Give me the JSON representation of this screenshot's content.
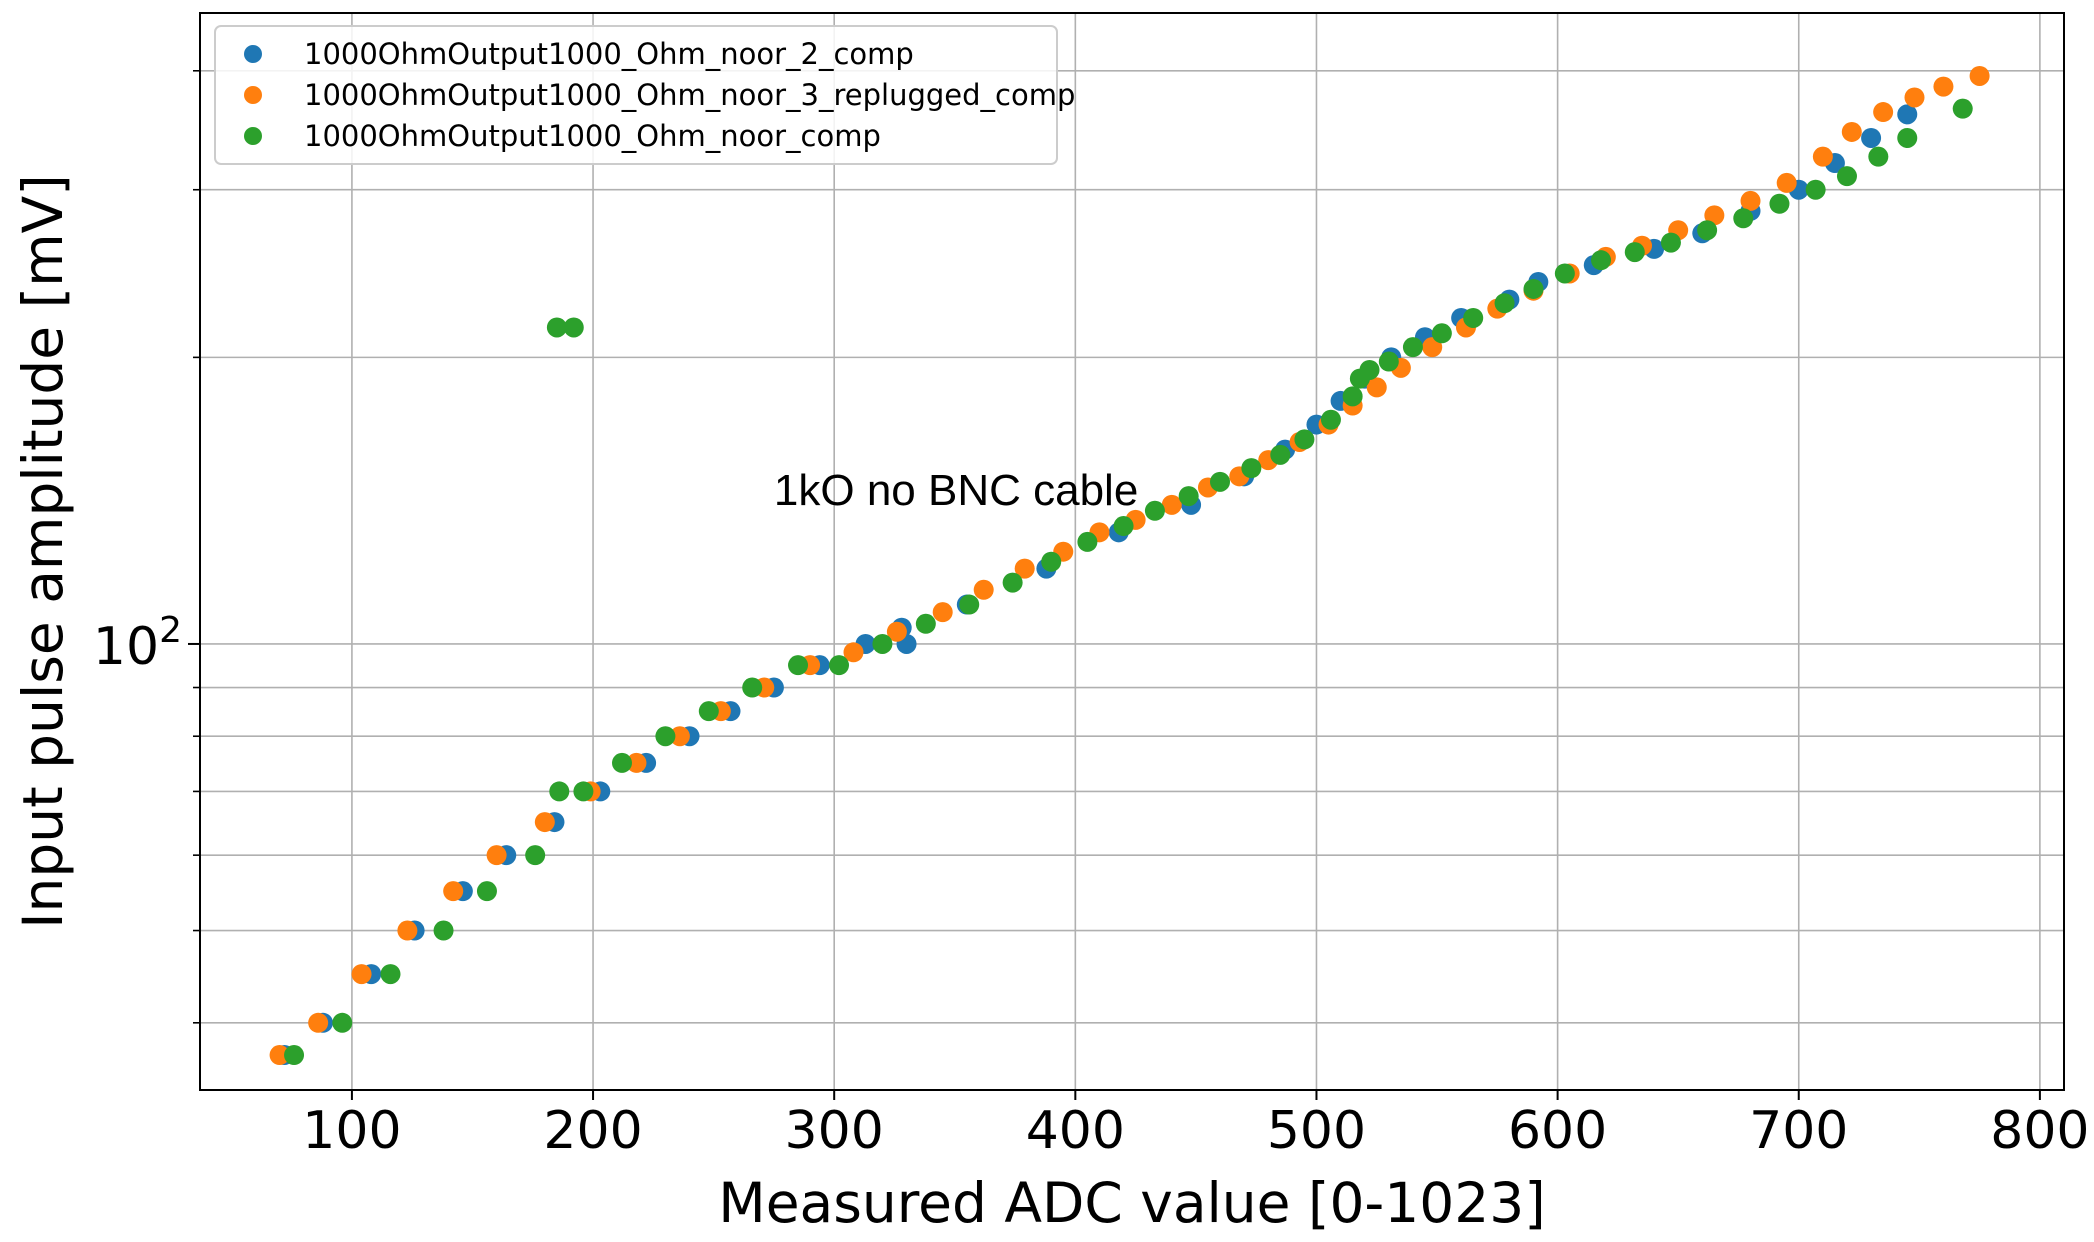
{
  "chart_data": {
    "type": "scatter",
    "title": "",
    "xlabel": "Measured ADC value [0-1023]",
    "ylabel": "Input pulse amplitude [mV]",
    "xlim": [
      37,
      810
    ],
    "ylim": [
      34,
      460
    ],
    "yscale": "log",
    "grid": true,
    "legend_position": "top-left",
    "x_ticks": [
      100,
      200,
      300,
      400,
      500,
      600,
      700,
      800
    ],
    "x_tick_labels": [
      "100",
      "200",
      "300",
      "400",
      "500",
      "600",
      "700",
      "800"
    ],
    "y_major_tick": {
      "base": "10",
      "exponent": "2",
      "value": 100
    },
    "y_minor_ticks": [
      40,
      50,
      60,
      70,
      80,
      90,
      200,
      300,
      400
    ],
    "annotation": {
      "text": "1kO no BNC cable",
      "x": 275,
      "y": 140
    },
    "series": [
      {
        "name": "1000OhmOutput1000_Ohm_noor_2_comp",
        "color": "#1f77b4",
        "points": [
          [
            72,
            37
          ],
          [
            88,
            40
          ],
          [
            108,
            45
          ],
          [
            126,
            50
          ],
          [
            146,
            55
          ],
          [
            164,
            60
          ],
          [
            184,
            65
          ],
          [
            203,
            70
          ],
          [
            222,
            75
          ],
          [
            240,
            80
          ],
          [
            257,
            85
          ],
          [
            275,
            90
          ],
          [
            294,
            95
          ],
          [
            313,
            100
          ],
          [
            330,
            100
          ],
          [
            328,
            104
          ],
          [
            355,
            110
          ],
          [
            388,
            120
          ],
          [
            418,
            131
          ],
          [
            448,
            140
          ],
          [
            470,
            150
          ],
          [
            487,
            160
          ],
          [
            500,
            170
          ],
          [
            510,
            180
          ],
          [
            520,
            190
          ],
          [
            531,
            200
          ],
          [
            545,
            210
          ],
          [
            560,
            220
          ],
          [
            580,
            230
          ],
          [
            592,
            240
          ],
          [
            615,
            250
          ],
          [
            640,
            260
          ],
          [
            660,
            270
          ],
          [
            680,
            285
          ],
          [
            700,
            300
          ],
          [
            715,
            320
          ],
          [
            730,
            340
          ],
          [
            745,
            360
          ]
        ]
      },
      {
        "name": "1000OhmOutput1000_Ohm_noor_3_replugged_comp",
        "color": "#ff7f0e",
        "points": [
          [
            70,
            37
          ],
          [
            86,
            40
          ],
          [
            104,
            45
          ],
          [
            123,
            50
          ],
          [
            142,
            55
          ],
          [
            160,
            60
          ],
          [
            180,
            65
          ],
          [
            199,
            70
          ],
          [
            218,
            75
          ],
          [
            236,
            80
          ],
          [
            253,
            85
          ],
          [
            271,
            90
          ],
          [
            290,
            95
          ],
          [
            308,
            98
          ],
          [
            326,
            103
          ],
          [
            345,
            108
          ],
          [
            362,
            114
          ],
          [
            379,
            120
          ],
          [
            395,
            125
          ],
          [
            410,
            131
          ],
          [
            425,
            135
          ],
          [
            440,
            140
          ],
          [
            455,
            146
          ],
          [
            468,
            150
          ],
          [
            480,
            156
          ],
          [
            493,
            163
          ],
          [
            505,
            170
          ],
          [
            515,
            178
          ],
          [
            525,
            186
          ],
          [
            535,
            195
          ],
          [
            548,
            205
          ],
          [
            562,
            215
          ],
          [
            575,
            225
          ],
          [
            590,
            235
          ],
          [
            605,
            245
          ],
          [
            620,
            255
          ],
          [
            635,
            262
          ],
          [
            650,
            272
          ],
          [
            665,
            282
          ],
          [
            680,
            292
          ],
          [
            695,
            305
          ],
          [
            710,
            325
          ],
          [
            722,
            345
          ],
          [
            735,
            362
          ],
          [
            748,
            375
          ],
          [
            760,
            385
          ],
          [
            775,
            395
          ]
        ]
      },
      {
        "name": "1000OhmOutput1000_Ohm_noor_comp",
        "color": "#2ca02c",
        "points": [
          [
            76,
            37
          ],
          [
            96,
            40
          ],
          [
            116,
            45
          ],
          [
            138,
            50
          ],
          [
            156,
            55
          ],
          [
            176,
            60
          ],
          [
            186,
            70
          ],
          [
            196,
            70
          ],
          [
            212,
            75
          ],
          [
            230,
            80
          ],
          [
            248,
            85
          ],
          [
            266,
            90
          ],
          [
            285,
            95
          ],
          [
            302,
            95
          ],
          [
            320,
            100
          ],
          [
            338,
            105
          ],
          [
            356,
            110
          ],
          [
            374,
            116
          ],
          [
            390,
            122
          ],
          [
            405,
            128
          ],
          [
            420,
            133
          ],
          [
            433,
            138
          ],
          [
            447,
            143
          ],
          [
            460,
            148
          ],
          [
            473,
            153
          ],
          [
            485,
            158
          ],
          [
            495,
            164
          ],
          [
            506,
            172
          ],
          [
            515,
            182
          ],
          [
            518,
            190
          ],
          [
            522,
            194
          ],
          [
            530,
            198
          ],
          [
            540,
            205
          ],
          [
            552,
            212
          ],
          [
            565,
            220
          ],
          [
            578,
            228
          ],
          [
            590,
            236
          ],
          [
            603,
            245
          ],
          [
            618,
            253
          ],
          [
            632,
            258
          ],
          [
            647,
            264
          ],
          [
            662,
            272
          ],
          [
            677,
            280
          ],
          [
            692,
            290
          ],
          [
            707,
            300
          ],
          [
            720,
            310
          ],
          [
            733,
            325
          ],
          [
            745,
            340
          ],
          [
            768,
            365
          ],
          [
            185,
            215
          ],
          [
            192,
            215
          ]
        ]
      }
    ]
  }
}
